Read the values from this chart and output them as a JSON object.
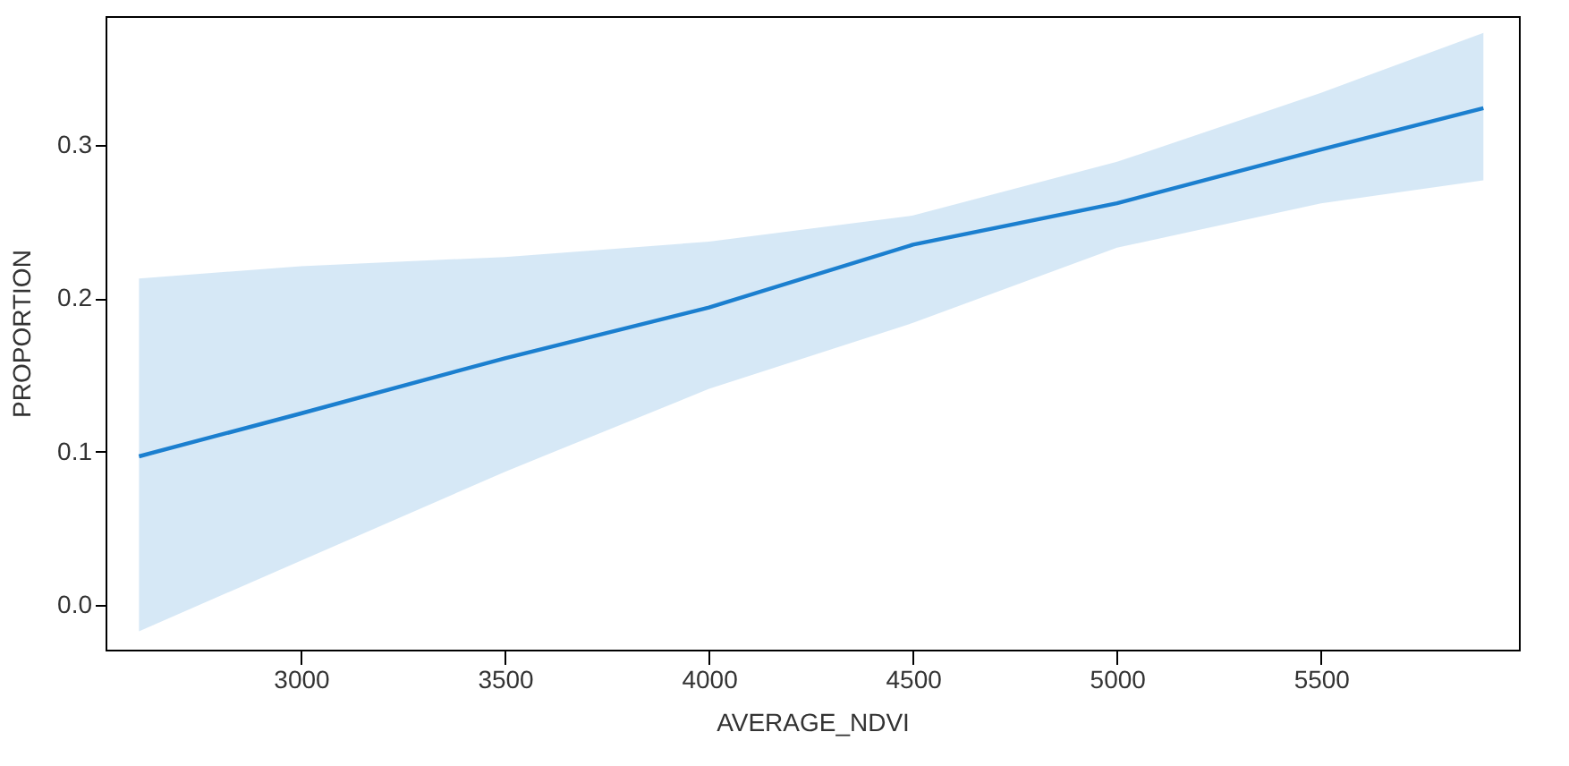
{
  "chart_data": {
    "type": "line",
    "xlabel": "AVERAGE_NDVI",
    "ylabel": "PROPORTION",
    "x": [
      2603,
      3000,
      3500,
      4000,
      4500,
      5000,
      5500,
      5898
    ],
    "series": [
      {
        "color": "#1b7fcf",
        "values": [
          0.097,
          0.125,
          0.161,
          0.194,
          0.235,
          0.262,
          0.297,
          0.324
        ],
        "lower": [
          -0.017,
          0.029,
          0.087,
          0.141,
          0.184,
          0.233,
          0.262,
          0.277
        ],
        "upper": [
          0.213,
          0.221,
          0.227,
          0.237,
          0.254,
          0.289,
          0.334,
          0.373
        ]
      }
    ],
    "xlim": [
      2521,
      5985
    ],
    "ylim": [
      -0.029,
      0.384
    ],
    "xticks": [
      3000,
      3500,
      4000,
      4500,
      5000,
      5500
    ],
    "yticks": [
      {
        "value": 0,
        "label": "0.0"
      },
      0.1,
      0.2,
      0.3
    ],
    "grid": false
  }
}
